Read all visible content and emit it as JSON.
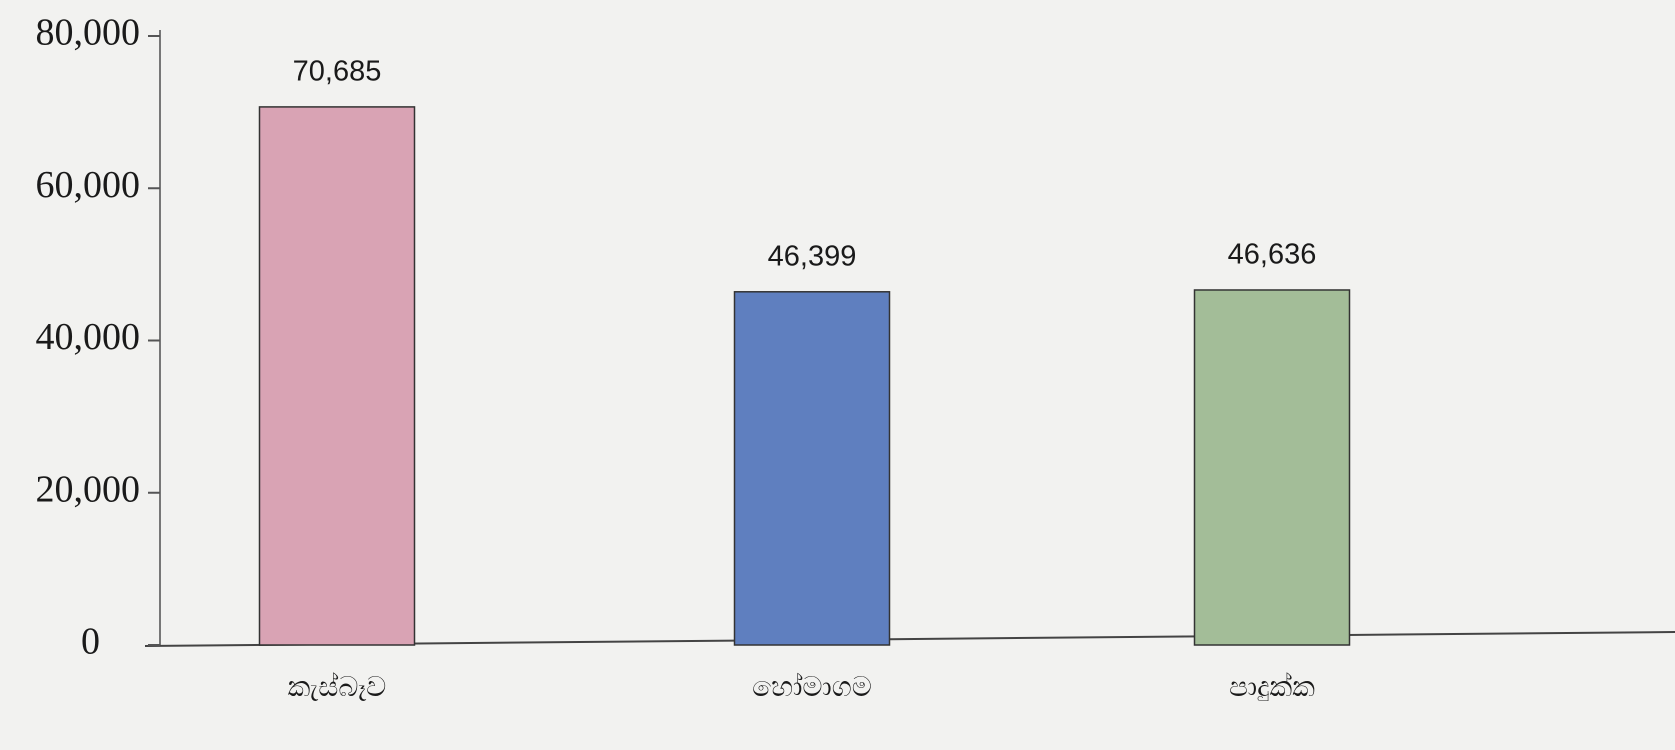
{
  "chart_data": {
    "type": "bar",
    "categories": [
      "කැස්බෑව",
      "හෝමාගම",
      "පාදුක්ක"
    ],
    "values": [
      70685,
      46399,
      46636
    ],
    "value_labels": [
      "70,685",
      "46,399",
      "46,636"
    ],
    "colors": [
      "#d9a3b4",
      "#5f7fbf",
      "#a3bd98"
    ],
    "ylim": [
      0,
      80000
    ],
    "yticks": [
      0,
      {
        "value": 20000,
        "label": "20,000"
      },
      {
        "value": 40000,
        "label": "40,000"
      },
      {
        "value": 60000,
        "label": "60,000"
      },
      {
        "value": 80000,
        "label": "80,000"
      }
    ],
    "grid": false
  }
}
